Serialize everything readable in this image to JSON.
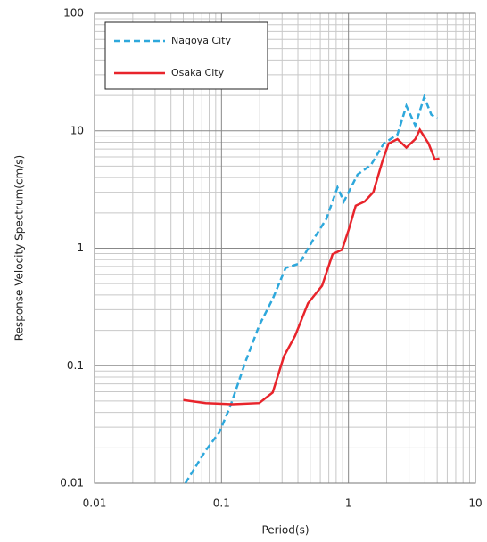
{
  "chart_data": {
    "type": "line",
    "x_label": "Period(s)",
    "y_label": "Response  Velocity  Spectrum(cm/s)",
    "log_x": true,
    "log_y": true,
    "grid": true,
    "minor_grid": true,
    "xlim": [
      0.01,
      10
    ],
    "ylim": [
      0.01,
      100
    ],
    "xticks": [
      0.01,
      0.1,
      1,
      10
    ],
    "yticks": [
      0.01,
      0.1,
      1,
      10,
      100
    ],
    "legend": "upper left",
    "series": [
      {
        "name": "Nagoya City",
        "color": "#2ea8dc",
        "dash": true,
        "x": [
          0.052,
          0.075,
          0.096,
          0.118,
          0.155,
          0.198,
          0.253,
          0.32,
          0.41,
          0.52,
          0.67,
          0.82,
          0.92,
          1.18,
          1.5,
          1.9,
          2.43,
          2.86,
          3.36,
          3.95,
          4.5,
          5.0
        ],
        "values": [
          0.01,
          0.019,
          0.027,
          0.046,
          0.109,
          0.22,
          0.37,
          0.68,
          0.74,
          1.15,
          1.78,
          3.3,
          2.5,
          4.25,
          5.1,
          7.8,
          9.3,
          16.3,
          11.1,
          19.4,
          13.7,
          12.8
        ]
      },
      {
        "name": "Osaka City",
        "color": "#e8242b",
        "dash": false,
        "x": [
          0.05,
          0.075,
          0.122,
          0.198,
          0.253,
          0.31,
          0.38,
          0.48,
          0.62,
          0.75,
          0.89,
          1.0,
          1.14,
          1.34,
          1.57,
          1.85,
          2.07,
          2.43,
          2.86,
          3.36,
          3.65,
          4.28,
          4.8,
          5.2
        ],
        "values": [
          0.051,
          0.048,
          0.047,
          0.048,
          0.059,
          0.12,
          0.18,
          0.34,
          0.48,
          0.89,
          0.97,
          1.42,
          2.3,
          2.5,
          3.0,
          5.5,
          7.8,
          8.5,
          7.2,
          8.5,
          10.2,
          7.8,
          5.7,
          5.8
        ]
      }
    ]
  }
}
